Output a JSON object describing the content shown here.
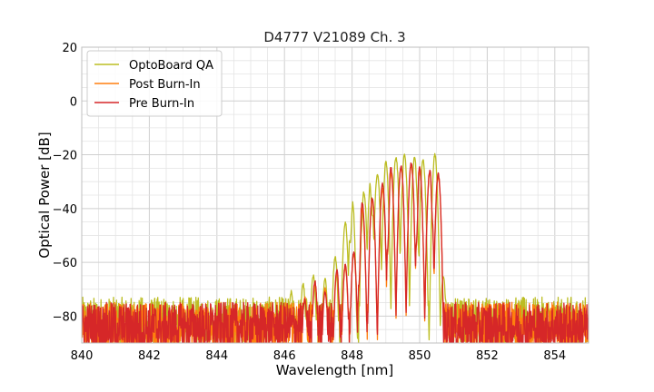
{
  "chart_data": {
    "type": "line",
    "title": "D4777 V21089 Ch. 3",
    "xlabel": "Wavelength [nm]",
    "ylabel": "Optical Power [dB]",
    "xlim": [
      840,
      855
    ],
    "ylim": [
      -90,
      20
    ],
    "xticks": [
      840,
      842,
      844,
      846,
      848,
      850,
      852,
      854
    ],
    "yticks": [
      -80,
      -60,
      -40,
      -20,
      0,
      20
    ],
    "xtick_labels": [
      "840",
      "842",
      "844",
      "846",
      "848",
      "850",
      "852",
      "854"
    ],
    "ytick_labels": [
      "−80",
      "−60",
      "−40",
      "−20",
      "0",
      "20"
    ],
    "grid": true,
    "legend_position": "top-left",
    "series": [
      {
        "name": "OptoBoard QA",
        "color": "#bcbd22",
        "noise_floor": -81,
        "peaks": [
          {
            "x": 846.2,
            "y": -71
          },
          {
            "x": 846.55,
            "y": -68
          },
          {
            "x": 846.85,
            "y": -65
          },
          {
            "x": 847.2,
            "y": -66
          },
          {
            "x": 847.5,
            "y": -58
          },
          {
            "x": 847.8,
            "y": -45
          },
          {
            "x": 848.0,
            "y": -36
          },
          {
            "x": 848.35,
            "y": -34
          },
          {
            "x": 848.55,
            "y": -30
          },
          {
            "x": 848.75,
            "y": -27
          },
          {
            "x": 849.0,
            "y": -23
          },
          {
            "x": 849.3,
            "y": -21
          },
          {
            "x": 849.55,
            "y": -20
          },
          {
            "x": 849.85,
            "y": -21
          },
          {
            "x": 850.1,
            "y": -22
          },
          {
            "x": 850.45,
            "y": -20
          },
          {
            "x": 850.7,
            "y": -65
          }
        ],
        "valleys": [
          {
            "x": 847.35,
            "y": -72
          },
          {
            "x": 847.95,
            "y": -53
          },
          {
            "x": 848.25,
            "y": -49
          },
          {
            "x": 848.6,
            "y": -43
          },
          {
            "x": 848.9,
            "y": -37
          },
          {
            "x": 849.15,
            "y": -33
          },
          {
            "x": 849.45,
            "y": -32
          },
          {
            "x": 849.7,
            "y": -32
          },
          {
            "x": 849.95,
            "y": -35
          },
          {
            "x": 850.25,
            "y": -38
          }
        ]
      },
      {
        "name": "Post Burn-In",
        "color": "#ff7f0e",
        "noise_floor": -83,
        "peaks": [
          {
            "x": 846.6,
            "y": -73
          },
          {
            "x": 846.9,
            "y": -68
          },
          {
            "x": 847.2,
            "y": -70
          },
          {
            "x": 847.55,
            "y": -64
          },
          {
            "x": 847.8,
            "y": -62
          },
          {
            "x": 848.05,
            "y": -57
          },
          {
            "x": 848.3,
            "y": -40
          },
          {
            "x": 848.6,
            "y": -37
          },
          {
            "x": 848.9,
            "y": -33
          },
          {
            "x": 849.15,
            "y": -27
          },
          {
            "x": 849.45,
            "y": -25
          },
          {
            "x": 849.75,
            "y": -24
          },
          {
            "x": 850.0,
            "y": -26
          },
          {
            "x": 850.3,
            "y": -27
          },
          {
            "x": 850.55,
            "y": -28
          }
        ],
        "valleys": [
          {
            "x": 847.05,
            "y": -77
          },
          {
            "x": 847.4,
            "y": -75
          },
          {
            "x": 847.65,
            "y": -78
          },
          {
            "x": 847.95,
            "y": -65
          },
          {
            "x": 848.2,
            "y": -70
          },
          {
            "x": 848.45,
            "y": -53
          },
          {
            "x": 848.75,
            "y": -55
          },
          {
            "x": 849.05,
            "y": -57
          },
          {
            "x": 849.3,
            "y": -48
          },
          {
            "x": 849.6,
            "y": -52
          },
          {
            "x": 849.9,
            "y": -54
          },
          {
            "x": 850.15,
            "y": -51
          },
          {
            "x": 850.4,
            "y": -47
          }
        ]
      },
      {
        "name": "Pre Burn-In",
        "color": "#d62728",
        "noise_floor": -83,
        "peaks": [
          {
            "x": 846.6,
            "y": -74
          },
          {
            "x": 846.9,
            "y": -67
          },
          {
            "x": 847.2,
            "y": -71
          },
          {
            "x": 847.55,
            "y": -63
          },
          {
            "x": 847.8,
            "y": -61
          },
          {
            "x": 848.05,
            "y": -56
          },
          {
            "x": 848.3,
            "y": -38
          },
          {
            "x": 848.6,
            "y": -36
          },
          {
            "x": 848.9,
            "y": -31
          },
          {
            "x": 849.15,
            "y": -25
          },
          {
            "x": 849.45,
            "y": -24
          },
          {
            "x": 849.75,
            "y": -23
          },
          {
            "x": 850.0,
            "y": -25
          },
          {
            "x": 850.3,
            "y": -26
          },
          {
            "x": 850.55,
            "y": -27
          }
        ],
        "valleys": [
          {
            "x": 847.05,
            "y": -76
          },
          {
            "x": 847.4,
            "y": -74
          },
          {
            "x": 847.65,
            "y": -77
          },
          {
            "x": 847.95,
            "y": -64
          },
          {
            "x": 848.2,
            "y": -69
          },
          {
            "x": 848.45,
            "y": -52
          },
          {
            "x": 848.75,
            "y": -54
          },
          {
            "x": 849.05,
            "y": -56
          },
          {
            "x": 849.3,
            "y": -49
          },
          {
            "x": 849.6,
            "y": -51
          },
          {
            "x": 849.9,
            "y": -53
          },
          {
            "x": 850.15,
            "y": -50
          },
          {
            "x": 850.4,
            "y": -46
          }
        ]
      }
    ]
  }
}
